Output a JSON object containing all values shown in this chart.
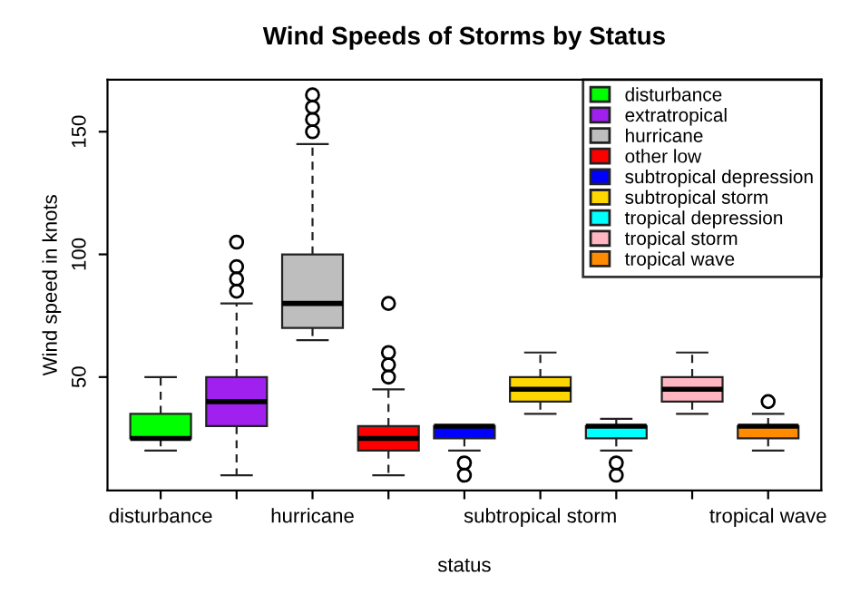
{
  "chart_data": {
    "type": "box",
    "title": "Wind Speeds of Storms by Status",
    "xlabel": "status",
    "ylabel": "Wind speed in knots",
    "categories": [
      "disturbance",
      null,
      "hurricane",
      null,
      null,
      "subtropical storm",
      null,
      null,
      "tropical wave"
    ],
    "ylim": [
      3.8,
      171.2
    ],
    "yticks": [
      50,
      100,
      150
    ],
    "grid": false,
    "legend": "top right",
    "series": [
      {
        "name": "disturbance",
        "color": "#00ff00",
        "boxes": [
          {
            "low": 20,
            "q1": 25,
            "median": 25,
            "q3": 35,
            "high": 50
          },
          null,
          null,
          null,
          null,
          null,
          null,
          null,
          null
        ]
      },
      {
        "name": "extratropical",
        "color": "#a020f0",
        "boxes": [
          null,
          {
            "low": 10,
            "q1": 30,
            "median": 40,
            "q3": 50,
            "high": 80,
            "outliers": [
              85,
              90,
              95,
              105
            ]
          },
          null,
          null,
          null,
          null,
          null,
          null,
          null
        ]
      },
      {
        "name": "hurricane",
        "color": "#bebebe",
        "boxes": [
          null,
          null,
          {
            "low": 65,
            "q1": 70,
            "median": 80,
            "q3": 100,
            "high": 145,
            "outliers": [
              150,
              155,
              160,
              165
            ]
          },
          null,
          null,
          null,
          null,
          null,
          null
        ]
      },
      {
        "name": "other low",
        "color": "#ff0000",
        "boxes": [
          null,
          null,
          null,
          {
            "low": 10,
            "q1": 20,
            "median": 25,
            "q3": 30,
            "high": 45,
            "outliers": [
              50,
              55,
              60,
              80
            ]
          },
          null,
          null,
          null,
          null,
          null
        ]
      },
      {
        "name": "subtropical depression",
        "color": "#0000ff",
        "boxes": [
          null,
          null,
          null,
          null,
          {
            "low": 20,
            "q1": 25,
            "median": 30,
            "q3": 30,
            "high": 30,
            "outliers": [
              10,
              15
            ]
          },
          null,
          null,
          null,
          null
        ]
      },
      {
        "name": "subtropical storm",
        "color": "#ffd700",
        "boxes": [
          null,
          null,
          null,
          null,
          null,
          {
            "low": 35,
            "q1": 40,
            "median": 45,
            "q3": 50,
            "high": 60
          },
          null,
          null,
          null
        ]
      },
      {
        "name": "tropical depression",
        "color": "#00ffff",
        "boxes": [
          null,
          null,
          null,
          null,
          null,
          null,
          {
            "low": 20,
            "q1": 25,
            "median": 30,
            "q3": 30,
            "high": 33,
            "outliers": [
              10,
              15
            ]
          },
          null,
          null
        ]
      },
      {
        "name": "tropical storm",
        "color": "#ffb6c1",
        "boxes": [
          null,
          null,
          null,
          null,
          null,
          null,
          null,
          {
            "low": 35,
            "q1": 40,
            "median": 45,
            "q3": 50,
            "high": 60
          },
          null
        ]
      },
      {
        "name": "tropical wave",
        "color": "#ff8c00",
        "boxes": [
          null,
          null,
          null,
          null,
          null,
          null,
          null,
          null,
          {
            "low": 20,
            "q1": 25,
            "median": 30,
            "q3": 30,
            "high": 35,
            "outliers": [
              40
            ]
          }
        ]
      }
    ]
  }
}
